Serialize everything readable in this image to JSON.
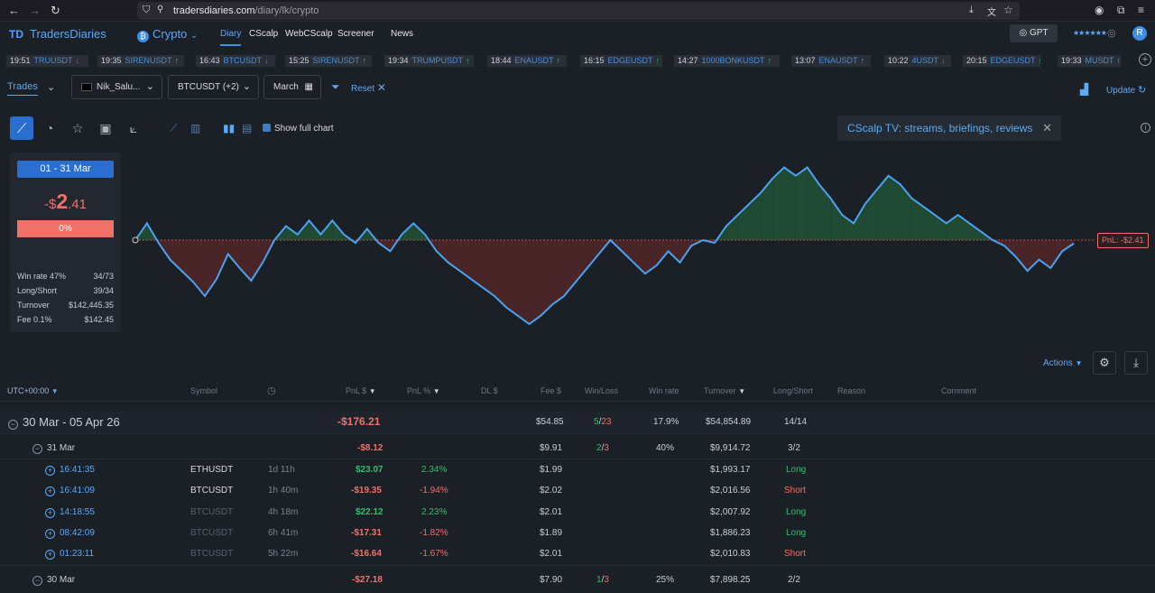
{
  "browser": {
    "url_domain": "tradersdiaries.com",
    "url_path": "/diary/lk/crypto"
  },
  "app": {
    "logo_text": "TradersDiaries",
    "market": "Crypto",
    "nav": [
      "Diary",
      "CScalp",
      "WebCScalp",
      "Screener",
      "News"
    ],
    "gpt_label": "GPT",
    "user_stars": "★★★★★★",
    "avatar_letter": "R"
  },
  "ticker": [
    {
      "time": "19:51",
      "sym": "TRUUSDT",
      "dir": "down"
    },
    {
      "time": "19:35",
      "sym": "SIRENUSDT",
      "dir": "up"
    },
    {
      "time": "16:43",
      "sym": "BTCUSDT",
      "dir": "down"
    },
    {
      "time": "15:25",
      "sym": "SIRENUSDT",
      "dir": "up"
    },
    {
      "time": "19:34",
      "sym": "TRUMPUSDT",
      "dir": "up"
    },
    {
      "time": "18:44",
      "sym": "ENAUSDT",
      "dir": "up"
    },
    {
      "time": "16:15",
      "sym": "EDGEUSDT",
      "dir": "up"
    },
    {
      "time": "14:27",
      "sym": "1000BONKUSDT",
      "dir": "up"
    },
    {
      "time": "13:07",
      "sym": "ENAUSDT",
      "dir": "up"
    },
    {
      "time": "10:22",
      "sym": "4USDT",
      "dir": "down"
    },
    {
      "time": "20:15",
      "sym": "EDGEUSDT",
      "dir": "up"
    },
    {
      "time": "19:33",
      "sym": "MUSDT",
      "dir": "up"
    }
  ],
  "filters": {
    "tab": "Trades",
    "account": "Nik_Salu...",
    "symbols": "BTCUSDT (+2)",
    "period": "March",
    "reset": "Reset",
    "update": "Update"
  },
  "chart_toolbar": {
    "show_full_chart": "Show full chart",
    "banner": "CScalp TV: streams, briefings, reviews"
  },
  "stats": {
    "date_range": "01 - 31 Mar",
    "pnl_sign": "-$",
    "pnl_int": "2",
    "pnl_dec": ".41",
    "pct": "0%",
    "rows": [
      {
        "label": "Win rate 47%",
        "value": "34/73"
      },
      {
        "label": "Long/Short",
        "value": "39/34"
      },
      {
        "label": "Turnover",
        "value": "$142,445.35"
      },
      {
        "label": "Fee 0.1%",
        "value": "$142.45"
      }
    ]
  },
  "chart_data": {
    "type": "area",
    "series": [
      {
        "values": [
          0,
          12,
          -2,
          -14,
          -22,
          -30,
          -40,
          -28,
          -10,
          -20,
          -29,
          -16,
          0,
          10,
          4,
          14,
          4,
          14,
          4,
          -2,
          8,
          -2,
          -8,
          4,
          12,
          4,
          -8,
          -16,
          -22,
          -28,
          -34,
          -40,
          -48,
          -54,
          -60,
          -54,
          -46,
          -40,
          -30,
          -20,
          -10,
          0,
          -8,
          -16,
          -24,
          -18,
          -8,
          -16,
          -4,
          0,
          -2,
          10,
          18,
          26,
          34,
          44,
          52,
          46,
          52,
          40,
          30,
          18,
          12,
          26,
          36,
          46,
          40,
          30,
          24,
          18,
          12,
          18,
          12,
          6,
          0,
          -4,
          -12,
          -22,
          -14,
          -20,
          -8,
          -2.41
        ]
      }
    ],
    "zero_line": 0,
    "last_label": "PnL: -$2.41",
    "colors": {
      "line": "#4aa3f0",
      "profit_fill": "#1f4a33",
      "loss_fill": "#4a2528",
      "zero_line": "#c0504a"
    }
  },
  "actions_label": "Actions",
  "table": {
    "headers": [
      "UTC+00:00",
      "Symbol",
      "",
      "PnL $",
      "PnL %",
      "DL $",
      "Fee $",
      "Win/Loss",
      "Win rate",
      "Turnover",
      "Long/Short",
      "Reason",
      "Comment"
    ],
    "week": {
      "label": "30 Mar - 05 Apr 26",
      "pnl": "-$176.21",
      "fee": "$54.85",
      "win": "5",
      "loss": "23",
      "winrate": "17.9%",
      "turnover": "$54,854.89",
      "ls": "14/14"
    },
    "day1": {
      "label": "31 Mar",
      "pnl": "-$8.12",
      "fee": "$9.91",
      "win": "2",
      "loss": "3",
      "winrate": "40%",
      "turnover": "$9,914.72",
      "ls": "3/2"
    },
    "trades": [
      {
        "time": "16:41:35",
        "symbol": "ETHUSDT",
        "dur": "1d 11h",
        "pnl": "$23.07",
        "pct": "2.34%",
        "fee": "$1.99",
        "turnover": "$1,993.17",
        "side": "Long",
        "pnl_dir": "pos",
        "dim": false
      },
      {
        "time": "16:41:09",
        "symbol": "BTCUSDT",
        "dur": "1h 40m",
        "pnl": "-$19.35",
        "pct": "-1.94%",
        "fee": "$2.02",
        "turnover": "$2,016.56",
        "side": "Short",
        "pnl_dir": "neg",
        "dim": false
      },
      {
        "time": "14:18:55",
        "symbol": "BTCUSDT",
        "dur": "4h 18m",
        "pnl": "$22.12",
        "pct": "2.23%",
        "fee": "$2.01",
        "turnover": "$2,007.92",
        "side": "Long",
        "pnl_dir": "pos",
        "dim": true
      },
      {
        "time": "08:42:09",
        "symbol": "BTCUSDT",
        "dur": "6h 41m",
        "pnl": "-$17.31",
        "pct": "-1.82%",
        "fee": "$1.89",
        "turnover": "$1,886.23",
        "side": "Long",
        "pnl_dir": "neg",
        "dim": true
      },
      {
        "time": "01:23:11",
        "symbol": "BTCUSDT",
        "dur": "5h 22m",
        "pnl": "-$16.64",
        "pct": "-1.67%",
        "fee": "$2.01",
        "turnover": "$2,010.83",
        "side": "Short",
        "pnl_dir": "neg",
        "dim": true
      }
    ],
    "day2": {
      "label": "30 Mar",
      "pnl": "-$27.18",
      "fee": "$7.90",
      "win": "1",
      "loss": "3",
      "winrate": "25%",
      "turnover": "$7,898.25",
      "ls": "2/2"
    }
  }
}
